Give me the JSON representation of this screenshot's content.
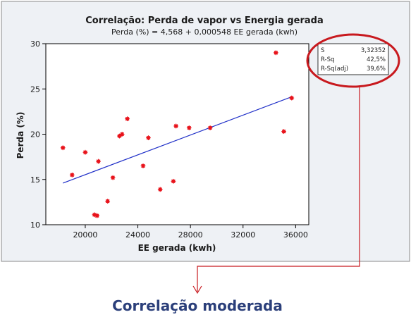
{
  "chart_data": {
    "type": "scatter",
    "title": "Correlação: Perda de vapor vs Energia gerada",
    "subtitle": "Perda (%) = 4,568 + 0,000548 EE gerada (kwh)",
    "xlabel": "EE gerada (kwh)",
    "ylabel": "Perda (%)",
    "xlim": [
      17000,
      37000
    ],
    "ylim": [
      10,
      30
    ],
    "x_ticks": [
      "20000",
      "24000",
      "28000",
      "32000",
      "36000"
    ],
    "y_ticks": [
      "10",
      "15",
      "20",
      "25",
      "30"
    ],
    "x_tick_values": [
      20000,
      24000,
      28000,
      32000,
      36000
    ],
    "y_tick_values": [
      10,
      15,
      20,
      25,
      30
    ],
    "points": [
      {
        "x": 18300,
        "y": 18.5
      },
      {
        "x": 19000,
        "y": 15.5
      },
      {
        "x": 20000,
        "y": 18.0
      },
      {
        "x": 20700,
        "y": 11.1
      },
      {
        "x": 20900,
        "y": 11.0
      },
      {
        "x": 21000,
        "y": 17.0
      },
      {
        "x": 21700,
        "y": 12.6
      },
      {
        "x": 22100,
        "y": 15.2
      },
      {
        "x": 22600,
        "y": 19.8
      },
      {
        "x": 22800,
        "y": 20.0
      },
      {
        "x": 23200,
        "y": 21.7
      },
      {
        "x": 24400,
        "y": 16.5
      },
      {
        "x": 24800,
        "y": 19.6
      },
      {
        "x": 25700,
        "y": 13.9
      },
      {
        "x": 26700,
        "y": 14.8
      },
      {
        "x": 26900,
        "y": 20.9
      },
      {
        "x": 27900,
        "y": 20.7
      },
      {
        "x": 29500,
        "y": 20.7
      },
      {
        "x": 34500,
        "y": 29.0
      },
      {
        "x": 35100,
        "y": 20.3
      },
      {
        "x": 35700,
        "y": 24.0
      }
    ],
    "fit_line": {
      "intercept": 4.568,
      "slope": 0.000548,
      "x_range": [
        18300,
        35700
      ]
    },
    "point_color": "#e8141c",
    "line_color": "#1f2fc8",
    "grid": false
  },
  "stats": {
    "rows": [
      {
        "label": "S",
        "value": "3,32352"
      },
      {
        "label": "R-Sq",
        "value": "42,5%"
      },
      {
        "label": "R-Sq(adj)",
        "value": "39,6%"
      }
    ],
    "highlight_color": "#c8191e"
  },
  "conclusion": "Correlação moderada",
  "colors": {
    "panel_bg": "#eef1f5",
    "plot_bg": "#ffffff",
    "conclusion": "#2b3f7a"
  }
}
